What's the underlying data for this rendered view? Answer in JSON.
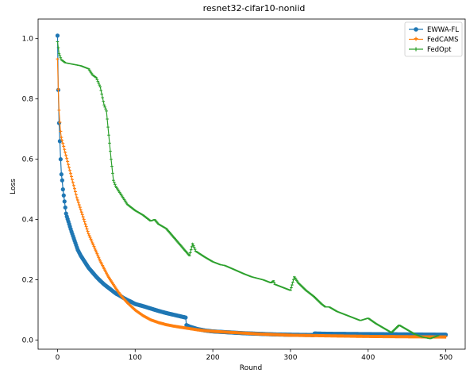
{
  "chart_data": {
    "type": "line",
    "title": "resnet32-cifar10-noniid",
    "xlabel": "Round",
    "ylabel": "Loss",
    "xlim": [
      -25,
      525
    ],
    "ylim": [
      -0.03,
      1.065
    ],
    "xticks": [
      0,
      100,
      200,
      300,
      400,
      500
    ],
    "yticks": [
      0.0,
      0.2,
      0.4,
      0.6,
      0.8,
      1.0
    ],
    "ytick_labels": [
      "0.0",
      "0.2",
      "0.4",
      "0.6",
      "0.8",
      "1.0"
    ],
    "legend_position": "top-right",
    "grid": false,
    "series": [
      {
        "name": "EWWA-FL",
        "color": "#1f77b4",
        "marker": "circle",
        "points": [
          [
            0,
            1.01
          ],
          [
            1,
            0.83
          ],
          [
            2,
            0.72
          ],
          [
            3,
            0.66
          ],
          [
            4,
            0.6
          ],
          [
            5,
            0.55
          ],
          [
            6,
            0.53
          ],
          [
            7,
            0.5
          ],
          [
            8,
            0.48
          ],
          [
            9,
            0.46
          ],
          [
            10,
            0.44
          ],
          [
            11,
            0.42
          ],
          [
            12,
            0.41
          ],
          [
            15,
            0.385
          ],
          [
            18,
            0.36
          ],
          [
            22,
            0.33
          ],
          [
            26,
            0.3
          ],
          [
            30,
            0.28
          ],
          [
            35,
            0.26
          ],
          [
            40,
            0.24
          ],
          [
            45,
            0.225
          ],
          [
            50,
            0.21
          ],
          [
            55,
            0.197
          ],
          [
            60,
            0.185
          ],
          [
            65,
            0.175
          ],
          [
            70,
            0.165
          ],
          [
            75,
            0.155
          ],
          [
            80,
            0.148
          ],
          [
            85,
            0.14
          ],
          [
            90,
            0.133
          ],
          [
            95,
            0.127
          ],
          [
            100,
            0.12
          ],
          [
            110,
            0.113
          ],
          [
            120,
            0.105
          ],
          [
            130,
            0.097
          ],
          [
            140,
            0.09
          ],
          [
            150,
            0.084
          ],
          [
            160,
            0.078
          ],
          [
            165,
            0.075
          ],
          [
            166,
            0.05
          ],
          [
            170,
            0.045
          ],
          [
            180,
            0.037
          ],
          [
            190,
            0.032
          ],
          [
            200,
            0.029
          ],
          [
            220,
            0.026
          ],
          [
            240,
            0.023
          ],
          [
            260,
            0.021
          ],
          [
            280,
            0.019
          ],
          [
            300,
            0.018
          ],
          [
            330,
            0.017
          ],
          [
            331,
            0.022
          ],
          [
            350,
            0.021
          ],
          [
            400,
            0.02
          ],
          [
            450,
            0.019
          ],
          [
            500,
            0.018
          ]
        ]
      },
      {
        "name": "FedCAMS",
        "color": "#ff7f0e",
        "marker": "star",
        "points": [
          [
            0,
            0.93
          ],
          [
            1,
            0.83
          ],
          [
            2,
            0.76
          ],
          [
            3,
            0.72
          ],
          [
            4,
            0.69
          ],
          [
            5,
            0.67
          ],
          [
            8,
            0.64
          ],
          [
            12,
            0.6
          ],
          [
            16,
            0.56
          ],
          [
            20,
            0.52
          ],
          [
            25,
            0.47
          ],
          [
            30,
            0.43
          ],
          [
            35,
            0.39
          ],
          [
            40,
            0.35
          ],
          [
            45,
            0.32
          ],
          [
            50,
            0.29
          ],
          [
            55,
            0.26
          ],
          [
            60,
            0.235
          ],
          [
            65,
            0.21
          ],
          [
            70,
            0.19
          ],
          [
            75,
            0.17
          ],
          [
            80,
            0.152
          ],
          [
            85,
            0.136
          ],
          [
            90,
            0.122
          ],
          [
            95,
            0.11
          ],
          [
            100,
            0.098
          ],
          [
            110,
            0.08
          ],
          [
            120,
            0.066
          ],
          [
            130,
            0.057
          ],
          [
            140,
            0.05
          ],
          [
            150,
            0.045
          ],
          [
            160,
            0.041
          ],
          [
            170,
            0.037
          ],
          [
            180,
            0.033
          ],
          [
            190,
            0.03
          ],
          [
            200,
            0.028
          ],
          [
            220,
            0.025
          ],
          [
            240,
            0.022
          ],
          [
            260,
            0.019
          ],
          [
            280,
            0.017
          ],
          [
            300,
            0.015
          ],
          [
            350,
            0.013
          ],
          [
            400,
            0.011
          ],
          [
            450,
            0.01
          ],
          [
            500,
            0.009
          ]
        ]
      },
      {
        "name": "FedOpt",
        "color": "#2ca02c",
        "marker": "tick",
        "points": [
          [
            0,
            0.99
          ],
          [
            2,
            0.95
          ],
          [
            5,
            0.93
          ],
          [
            10,
            0.92
          ],
          [
            20,
            0.915
          ],
          [
            30,
            0.91
          ],
          [
            40,
            0.9
          ],
          [
            45,
            0.88
          ],
          [
            50,
            0.87
          ],
          [
            55,
            0.84
          ],
          [
            60,
            0.78
          ],
          [
            63,
            0.76
          ],
          [
            66,
            0.68
          ],
          [
            69,
            0.6
          ],
          [
            72,
            0.53
          ],
          [
            75,
            0.51
          ],
          [
            80,
            0.49
          ],
          [
            85,
            0.47
          ],
          [
            90,
            0.45
          ],
          [
            100,
            0.43
          ],
          [
            110,
            0.415
          ],
          [
            120,
            0.395
          ],
          [
            125,
            0.4
          ],
          [
            130,
            0.385
          ],
          [
            140,
            0.37
          ],
          [
            150,
            0.34
          ],
          [
            160,
            0.31
          ],
          [
            170,
            0.28
          ],
          [
            174,
            0.32
          ],
          [
            178,
            0.295
          ],
          [
            190,
            0.275
          ],
          [
            200,
            0.26
          ],
          [
            210,
            0.25
          ],
          [
            215,
            0.248
          ],
          [
            225,
            0.237
          ],
          [
            240,
            0.22
          ],
          [
            250,
            0.21
          ],
          [
            265,
            0.2
          ],
          [
            275,
            0.19
          ],
          [
            278,
            0.197
          ],
          [
            280,
            0.185
          ],
          [
            290,
            0.175
          ],
          [
            300,
            0.165
          ],
          [
            305,
            0.21
          ],
          [
            310,
            0.19
          ],
          [
            320,
            0.165
          ],
          [
            330,
            0.145
          ],
          [
            340,
            0.12
          ],
          [
            345,
            0.11
          ],
          [
            350,
            0.11
          ],
          [
            360,
            0.095
          ],
          [
            370,
            0.085
          ],
          [
            380,
            0.075
          ],
          [
            390,
            0.065
          ],
          [
            400,
            0.073
          ],
          [
            410,
            0.055
          ],
          [
            420,
            0.04
          ],
          [
            430,
            0.025
          ],
          [
            440,
            0.05
          ],
          [
            450,
            0.035
          ],
          [
            460,
            0.02
          ],
          [
            470,
            0.01
          ],
          [
            480,
            0.005
          ],
          [
            490,
            0.015
          ]
        ]
      }
    ]
  }
}
